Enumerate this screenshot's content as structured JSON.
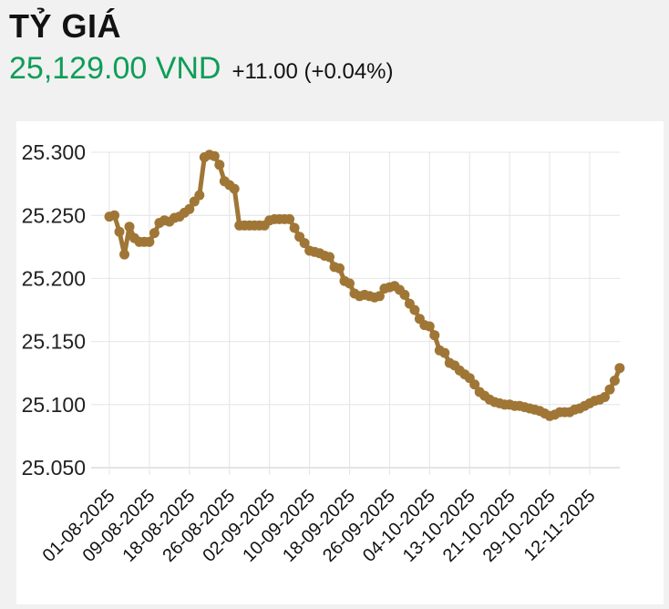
{
  "header": {
    "title": "TỶ GIÁ",
    "price": "25,129.00 VND",
    "change": "+11.00 (+0.04%)"
  },
  "colors": {
    "page_bg": "#f1f1f1",
    "card_bg": "#ffffff",
    "accent_green": "#0f9d58",
    "line": "#a07636",
    "grid": "#e4e4e4",
    "axis_line": "#c9c9c9",
    "axis_text": "#222222"
  },
  "chart_data": {
    "type": "line",
    "title": "TỶ GIÁ",
    "unit": "VND",
    "latest_value": 25129.0,
    "change": 11.0,
    "change_pct": 0.04,
    "ylim": [
      25050,
      25300
    ],
    "grid": true,
    "legend": "none",
    "marker": "circle",
    "y_ticks": [
      "25.300",
      "25.250",
      "25.200",
      "25.150",
      "25.100",
      "25.050"
    ],
    "y_tick_values": [
      25300,
      25250,
      25200,
      25150,
      25100,
      25050
    ],
    "x_labels": [
      "01-08-2025",
      "09-08-2025",
      "18-08-2025",
      "26-08-2025",
      "02-09-2025",
      "10-09-2025",
      "18-09-2025",
      "26-09-2025",
      "04-10-2025",
      "13-10-2025",
      "21-10-2025",
      "29-10-2025",
      "12-11-2025"
    ],
    "x_label_indices": [
      0,
      8,
      16,
      24,
      32,
      40,
      48,
      56,
      64,
      72,
      80,
      88,
      96
    ],
    "values": [
      25249,
      25250,
      25237,
      25219,
      25241,
      25232,
      25229,
      25229,
      25229,
      25236,
      25244,
      25246,
      25245,
      25248,
      25249,
      25252,
      25255,
      25261,
      25266,
      25296,
      25298,
      25297,
      25290,
      25277,
      25274,
      25271,
      25242,
      25242,
      25242,
      25242,
      25242,
      25242,
      25246,
      25247,
      25247,
      25247,
      25247,
      25240,
      25233,
      25228,
      25222,
      25221,
      25220,
      25218,
      25217,
      25209,
      25208,
      25198,
      25196,
      25188,
      25186,
      25187,
      25186,
      25185,
      25186,
      25192,
      25193,
      25194,
      25191,
      25187,
      25180,
      25175,
      25168,
      25163,
      25162,
      25155,
      25143,
      25141,
      25133,
      25131,
      25127,
      25124,
      25121,
      25116,
      25110,
      25107,
      25104,
      25102,
      25101,
      25100,
      25100,
      25099,
      25099,
      25098,
      25097,
      25096,
      25095,
      25093,
      25091,
      25092,
      25094,
      25094,
      25094,
      25096,
      25097,
      25099,
      25101,
      25103,
      25104,
      25106,
      25112,
      25119,
      25129
    ]
  }
}
